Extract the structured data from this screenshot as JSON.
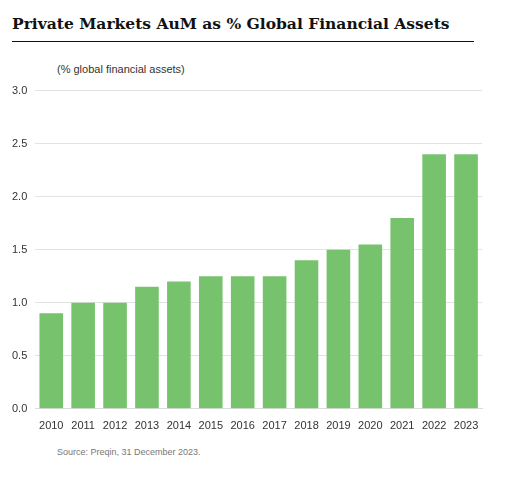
{
  "chart_data": {
    "type": "bar",
    "title": "Private Markets AuM as % Global Financial Assets",
    "ylabel": "(% global financial assets)",
    "source": "Source: Preqin, 31 December 2023.",
    "categories": [
      "2010",
      "2011",
      "2012",
      "2013",
      "2014",
      "2015",
      "2016",
      "2017",
      "2018",
      "2019",
      "2020",
      "2021",
      "2022",
      "2023"
    ],
    "values": [
      0.9,
      1.0,
      1.0,
      1.15,
      1.2,
      1.25,
      1.25,
      1.25,
      1.4,
      1.5,
      1.55,
      1.8,
      2.4,
      2.4
    ],
    "color": "#77c36d",
    "ylim": [
      0,
      3
    ],
    "yticks": [
      {
        "value": 0,
        "label": "0.0"
      },
      {
        "value": 0.5,
        "label": "0.5"
      },
      {
        "value": 1,
        "label": "1.0"
      },
      {
        "value": 1.5,
        "label": "1.5"
      },
      {
        "value": 2,
        "label": "2.0"
      },
      {
        "value": 2.5,
        "label": "2.5"
      },
      {
        "value": 3,
        "label": "3.0"
      }
    ],
    "grid": true
  }
}
